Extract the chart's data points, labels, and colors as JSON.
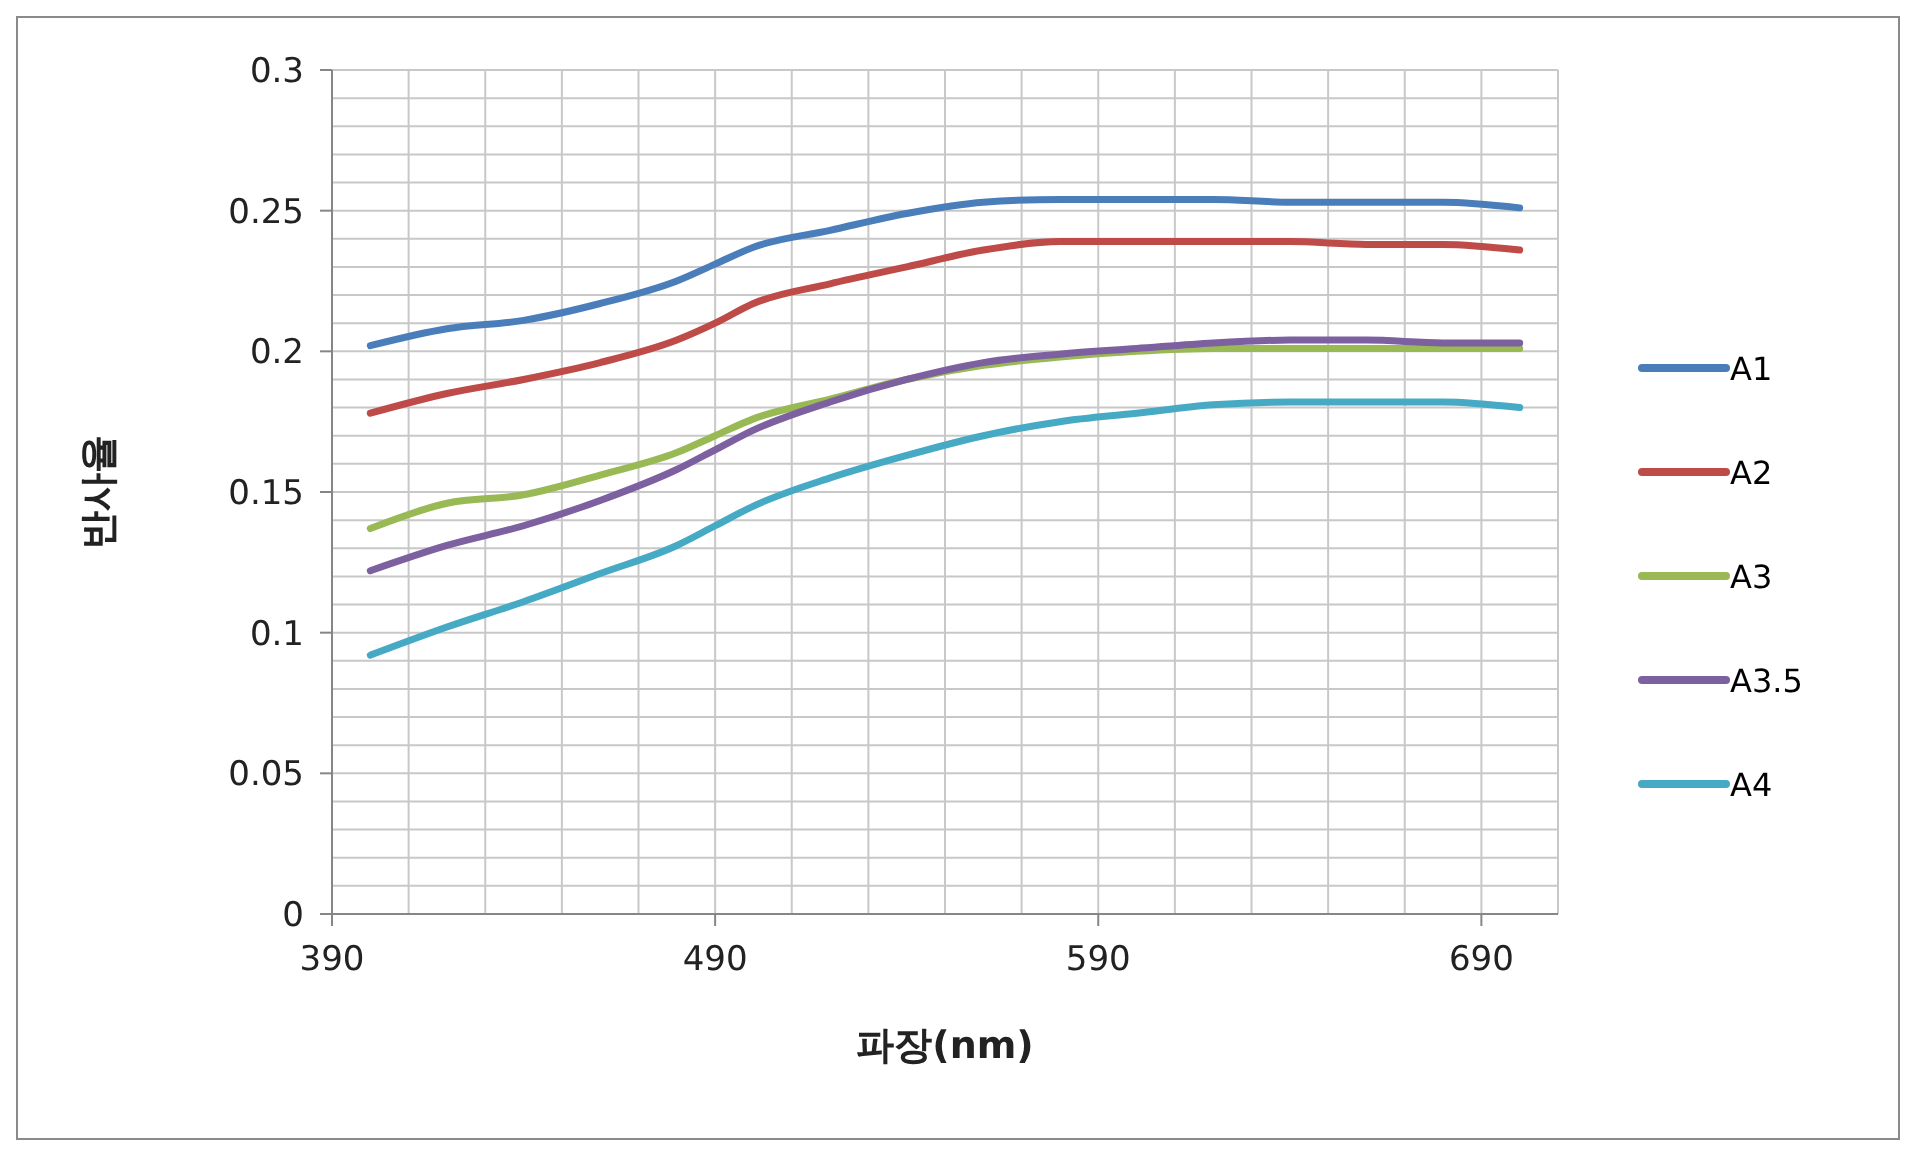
{
  "chart_data": {
    "type": "line",
    "xlabel": "파장(nm)",
    "ylabel": "반사율",
    "x": [
      400,
      420,
      440,
      460,
      480,
      490,
      500,
      520,
      540,
      560,
      580,
      600,
      620,
      640,
      660,
      680,
      700
    ],
    "series": [
      {
        "name": "A1",
        "color": "#4a7ebb",
        "values": [
          0.202,
          0.208,
          0.211,
          0.217,
          0.225,
          0.231,
          0.237,
          0.243,
          0.249,
          0.253,
          0.254,
          0.254,
          0.254,
          0.253,
          0.253,
          0.253,
          0.251
        ]
      },
      {
        "name": "A2",
        "color": "#be4b48",
        "values": [
          0.178,
          0.185,
          0.19,
          0.196,
          0.204,
          0.21,
          0.217,
          0.224,
          0.23,
          0.236,
          0.239,
          0.239,
          0.239,
          0.239,
          0.238,
          0.238,
          0.236
        ]
      },
      {
        "name": "A3",
        "color": "#98b954",
        "values": [
          0.137,
          0.146,
          0.149,
          0.156,
          0.164,
          0.17,
          0.176,
          0.183,
          0.19,
          0.195,
          0.198,
          0.2,
          0.201,
          0.201,
          0.201,
          0.201,
          0.201
        ]
      },
      {
        "name": "A3.5",
        "color": "#7d60a0",
        "values": [
          0.122,
          0.131,
          0.138,
          0.147,
          0.158,
          0.165,
          0.172,
          0.182,
          0.19,
          0.196,
          0.199,
          0.201,
          0.203,
          0.204,
          0.204,
          0.203,
          0.203
        ]
      },
      {
        "name": "A4",
        "color": "#46aac5",
        "values": [
          0.092,
          0.102,
          0.111,
          0.121,
          0.131,
          0.138,
          0.145,
          0.155,
          0.163,
          0.17,
          0.175,
          0.178,
          0.181,
          0.182,
          0.182,
          0.182,
          0.18
        ]
      }
    ],
    "xlim": [
      390,
      710
    ],
    "xticks": [
      390,
      {
        "value": 410,
        "label": null
      },
      {
        "value": 430,
        "label": null
      },
      {
        "value": 450,
        "label": null
      },
      {
        "value": 470,
        "label": null
      },
      490,
      {
        "value": 510,
        "label": null
      },
      {
        "value": 530,
        "label": null
      },
      {
        "value": 550,
        "label": null
      },
      {
        "value": 570,
        "label": null
      },
      590,
      {
        "value": 610,
        "label": null
      },
      {
        "value": 630,
        "label": null
      },
      {
        "value": 650,
        "label": null
      },
      {
        "value": 670,
        "label": null
      },
      690,
      {
        "value": 710,
        "label": null
      }
    ],
    "ylim": [
      0,
      0.3
    ],
    "yticks": [
      0,
      {
        "value": 0.01,
        "label": null
      },
      {
        "value": 0.02,
        "label": null
      },
      {
        "value": 0.03,
        "label": null
      },
      {
        "value": 0.04,
        "label": null
      },
      0.05,
      {
        "value": 0.06,
        "label": null
      },
      {
        "value": 0.07,
        "label": null
      },
      {
        "value": 0.08,
        "label": null
      },
      {
        "value": 0.09,
        "label": null
      },
      0.1,
      {
        "value": 0.11,
        "label": null
      },
      {
        "value": 0.12,
        "label": null
      },
      {
        "value": 0.13,
        "label": null
      },
      {
        "value": 0.14,
        "label": null
      },
      0.15,
      {
        "value": 0.16,
        "label": null
      },
      {
        "value": 0.17,
        "label": null
      },
      {
        "value": 0.18,
        "label": null
      },
      {
        "value": 0.19,
        "label": null
      },
      0.2,
      {
        "value": 0.21,
        "label": null
      },
      {
        "value": 0.22,
        "label": null
      },
      {
        "value": 0.23,
        "label": null
      },
      {
        "value": 0.24,
        "label": null
      },
      0.25,
      {
        "value": 0.26,
        "label": null
      },
      {
        "value": 0.27,
        "label": null
      },
      {
        "value": 0.28,
        "label": null
      },
      {
        "value": 0.29,
        "label": null
      },
      0.3
    ],
    "grid": true,
    "legend": "right"
  }
}
